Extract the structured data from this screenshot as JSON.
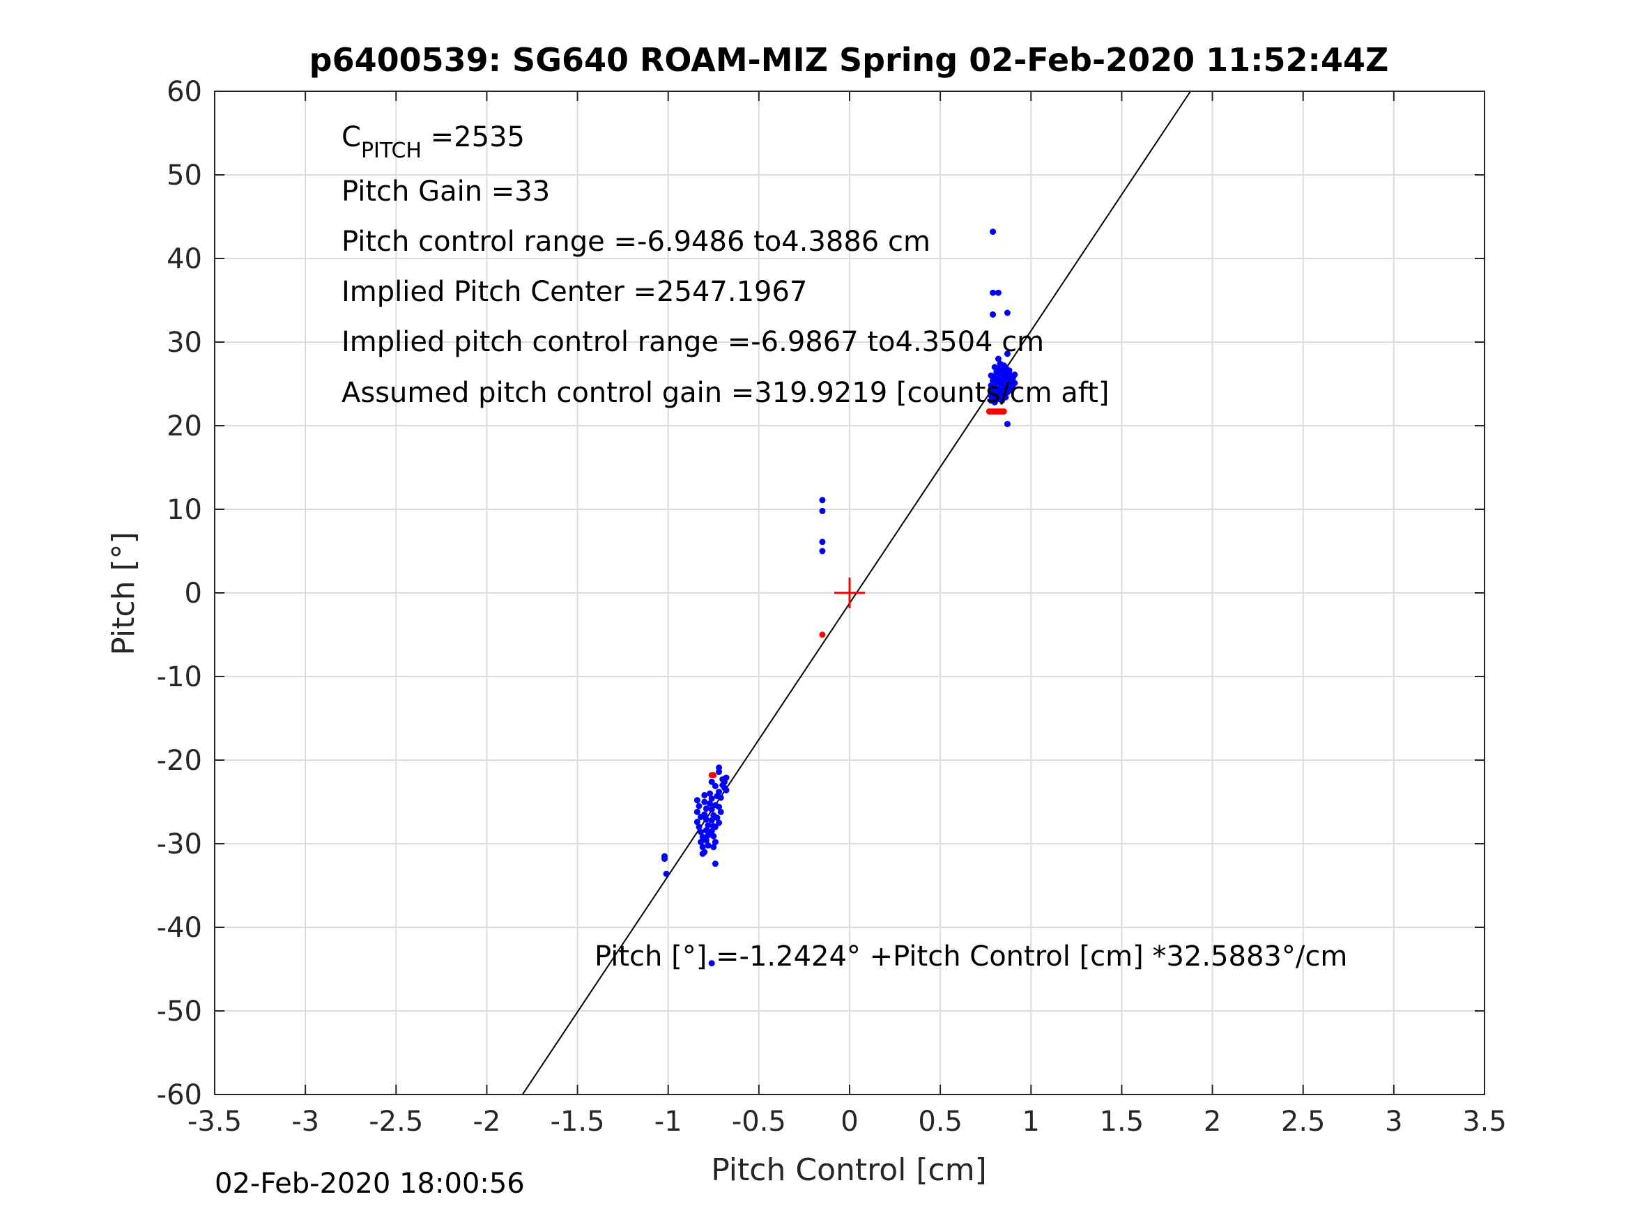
{
  "chart_data": {
    "type": "scatter",
    "title": "p6400539: SG640 ROAM-MIZ Spring 02-Feb-2020 11:52:44Z",
    "xlabel": "Pitch Control [cm]",
    "ylabel": "Pitch [°]",
    "xlim": [
      -3.5,
      3.5
    ],
    "ylim": [
      -60,
      60
    ],
    "xticks": [
      -3.5,
      -3,
      -2.5,
      -2,
      -1.5,
      -1,
      -0.5,
      0,
      0.5,
      1,
      1.5,
      2,
      2.5,
      3,
      3.5
    ],
    "xtick_labels": [
      "-3.5",
      "-3",
      "-2.5",
      "-2",
      "-1.5",
      "-1",
      "-0.5",
      "0",
      "0.5",
      "1",
      "1.5",
      "2",
      "2.5",
      "3",
      "3.5"
    ],
    "yticks": [
      -60,
      -50,
      -40,
      -30,
      -20,
      -10,
      0,
      10,
      20,
      30,
      40,
      50,
      60
    ],
    "ytick_labels": [
      "-60",
      "-50",
      "-40",
      "-30",
      "-20",
      "-10",
      "0",
      "10",
      "20",
      "30",
      "40",
      "50",
      "60"
    ],
    "grid": true,
    "fit_line": {
      "intercept": -1.2424,
      "slope": 32.5883,
      "color": "#000000"
    },
    "center_marker": {
      "x": 0,
      "y": 0,
      "marker": "+",
      "color": "#ff0000"
    },
    "annotations": {
      "c_pitch_main": "C",
      "c_pitch_sub": "PITCH",
      "c_pitch_value": " =2535",
      "pitch_gain": "Pitch Gain =33",
      "pitch_control_range": "Pitch control range =-6.9486 to4.3886 cm",
      "implied_pitch_center": "Implied Pitch Center =2547.1967",
      "implied_pitch_control_range": "Implied pitch control range =-6.9867 to4.3504 cm",
      "assumed_gain": "Assumed pitch control gain =319.9219 [counts/cm aft]",
      "fit_equation": "Pitch [°] =-1.2424° +Pitch Control [cm] *32.5883°/cm"
    },
    "series": [
      {
        "color": "#0000ff",
        "points": [
          [
            -1.02,
            -31.5
          ],
          [
            -1.02,
            -31.8
          ],
          [
            -1.01,
            -33.6
          ],
          [
            -0.84,
            -24.8
          ],
          [
            -0.83,
            -25.5
          ],
          [
            -0.84,
            -26.2
          ],
          [
            -0.82,
            -26.8
          ],
          [
            -0.84,
            -27.4
          ],
          [
            -0.83,
            -28.0
          ],
          [
            -0.82,
            -28.6
          ],
          [
            -0.81,
            -29.2
          ],
          [
            -0.82,
            -29.8
          ],
          [
            -0.81,
            -30.4
          ],
          [
            -0.8,
            -31.0
          ],
          [
            -0.81,
            -31.2
          ],
          [
            -0.8,
            -25.0
          ],
          [
            -0.79,
            -25.8
          ],
          [
            -0.8,
            -26.5
          ],
          [
            -0.79,
            -27.1
          ],
          [
            -0.78,
            -27.8
          ],
          [
            -0.79,
            -28.4
          ],
          [
            -0.78,
            -29.0
          ],
          [
            -0.79,
            -29.6
          ],
          [
            -0.78,
            -30.2
          ],
          [
            -0.8,
            -24.2
          ],
          [
            -0.77,
            -24.0
          ],
          [
            -0.76,
            -24.6
          ],
          [
            -0.77,
            -25.2
          ],
          [
            -0.76,
            -25.9
          ],
          [
            -0.75,
            -26.6
          ],
          [
            -0.76,
            -27.2
          ],
          [
            -0.75,
            -27.9
          ],
          [
            -0.76,
            -28.5
          ],
          [
            -0.75,
            -29.1
          ],
          [
            -0.74,
            -29.8
          ],
          [
            -0.75,
            -30.4
          ],
          [
            -0.76,
            -22.6
          ],
          [
            -0.74,
            -23.1
          ],
          [
            -0.73,
            -24.3
          ],
          [
            -0.74,
            -25.4
          ],
          [
            -0.73,
            -26.9
          ],
          [
            -0.74,
            -28.0
          ],
          [
            -0.74,
            -32.4
          ],
          [
            -0.72,
            -23.8
          ],
          [
            -0.71,
            -24.5
          ],
          [
            -0.72,
            -25.6
          ],
          [
            -0.71,
            -26.2
          ],
          [
            -0.72,
            -27.5
          ],
          [
            -0.72,
            -20.9
          ],
          [
            -0.72,
            -21.4
          ],
          [
            -0.7,
            -22.3
          ],
          [
            -0.69,
            -22.6
          ],
          [
            -0.68,
            -22.1
          ],
          [
            -0.69,
            -23.3
          ],
          [
            -0.68,
            -23.6
          ],
          [
            -0.7,
            -23.0
          ],
          [
            -0.76,
            -44.3
          ],
          [
            -0.15,
            11.1
          ],
          [
            -0.15,
            9.8
          ],
          [
            -0.15,
            6.1
          ],
          [
            -0.15,
            5.0
          ],
          [
            0.79,
            43.2
          ],
          [
            0.79,
            35.9
          ],
          [
            0.82,
            35.9
          ],
          [
            0.79,
            33.3
          ],
          [
            0.87,
            33.5
          ],
          [
            0.78,
            23.0
          ],
          [
            0.78,
            23.6
          ],
          [
            0.79,
            24.2
          ],
          [
            0.78,
            24.8
          ],
          [
            0.79,
            25.4
          ],
          [
            0.78,
            26.0
          ],
          [
            0.8,
            22.8
          ],
          [
            0.8,
            23.4
          ],
          [
            0.81,
            24.0
          ],
          [
            0.8,
            24.6
          ],
          [
            0.81,
            25.2
          ],
          [
            0.8,
            25.8
          ],
          [
            0.81,
            26.4
          ],
          [
            0.8,
            27.0
          ],
          [
            0.82,
            23.2
          ],
          [
            0.83,
            23.8
          ],
          [
            0.82,
            24.4
          ],
          [
            0.83,
            25.0
          ],
          [
            0.82,
            25.6
          ],
          [
            0.83,
            26.2
          ],
          [
            0.82,
            26.8
          ],
          [
            0.83,
            27.4
          ],
          [
            0.82,
            28.0
          ],
          [
            0.84,
            23.0
          ],
          [
            0.85,
            23.6
          ],
          [
            0.84,
            24.2
          ],
          [
            0.85,
            24.8
          ],
          [
            0.84,
            25.4
          ],
          [
            0.85,
            26.0
          ],
          [
            0.84,
            26.6
          ],
          [
            0.85,
            27.2
          ],
          [
            0.86,
            23.4
          ],
          [
            0.87,
            24.0
          ],
          [
            0.86,
            24.6
          ],
          [
            0.87,
            25.2
          ],
          [
            0.86,
            25.8
          ],
          [
            0.87,
            26.4
          ],
          [
            0.86,
            27.0
          ],
          [
            0.87,
            28.6
          ],
          [
            0.88,
            24.2
          ],
          [
            0.89,
            24.8
          ],
          [
            0.88,
            25.4
          ],
          [
            0.89,
            26.0
          ],
          [
            0.88,
            26.6
          ],
          [
            0.9,
            24.5
          ],
          [
            0.91,
            25.1
          ],
          [
            0.9,
            25.7
          ],
          [
            0.91,
            26.1
          ],
          [
            0.87,
            20.2
          ]
        ]
      },
      {
        "color": "#ff0000",
        "points": [
          [
            -0.76,
            -21.8
          ],
          [
            -0.75,
            -21.8
          ],
          [
            -0.15,
            -5.0
          ],
          [
            0.77,
            21.7
          ],
          [
            0.78,
            21.7
          ],
          [
            0.79,
            21.7
          ],
          [
            0.8,
            21.7
          ],
          [
            0.81,
            21.7
          ],
          [
            0.82,
            21.7
          ],
          [
            0.83,
            21.7
          ],
          [
            0.84,
            21.7
          ],
          [
            0.85,
            21.7
          ]
        ]
      }
    ]
  },
  "footer": {
    "timestamp": "02-Feb-2020 18:00:56"
  }
}
